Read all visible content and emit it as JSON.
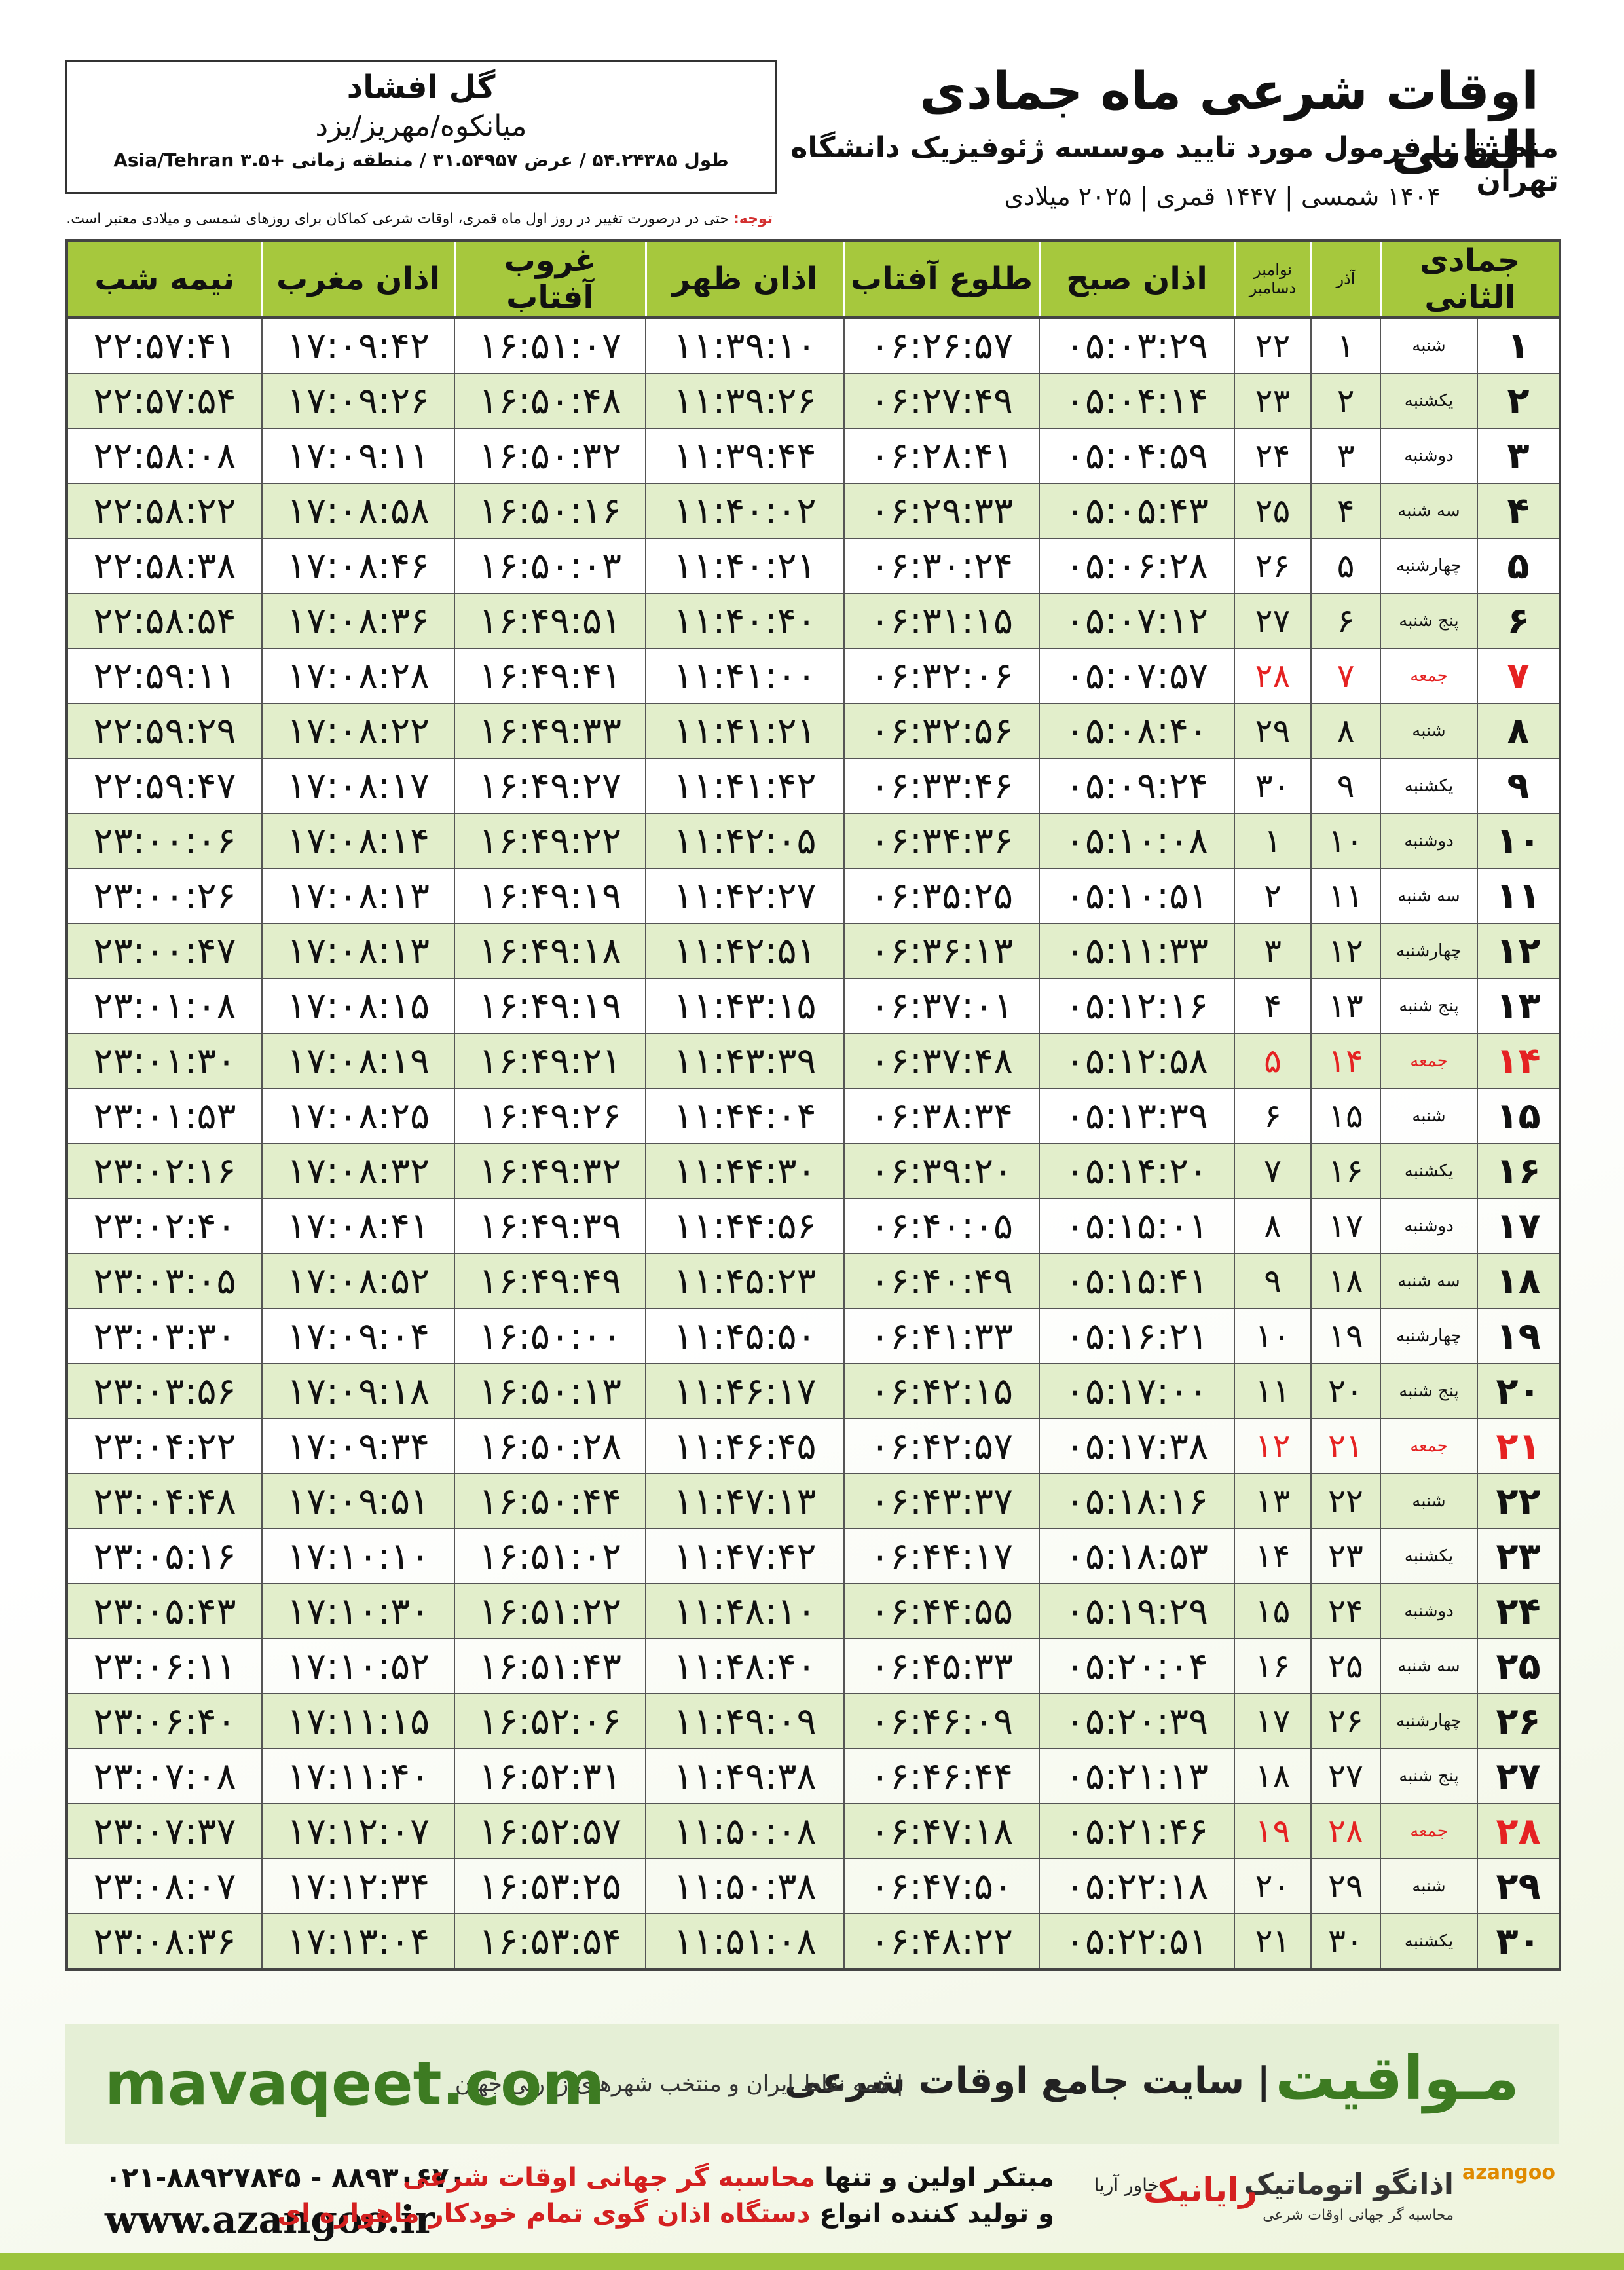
{
  "header": {
    "title": "اوقات شرعی ماه جمادی الثانی",
    "subtitle": "منطبق با فرمول مورد تایید موسسه ژئوفیزیک دانشگاه تهران",
    "dates": "۱۴۰۴ شمسی | ۱۴۴۷ قمری | ۲۰۲۵ میلادی"
  },
  "location": {
    "name": "گل افشاد",
    "region": "میانکوه/مهریز/یزد",
    "coords": "طول ۵۴.۲۴۳۸۵ / عرض ۳۱.۵۴۹۵۷ / منطقه زمانی +۳.۵ Asia/Tehran"
  },
  "note": {
    "label": "توجه:",
    "text": "حتی در درصورت تغییر در روز اول ماه قمری، اوقات شرعی کماکان برای روزهای شمسی و میلادی معتبر است."
  },
  "table": {
    "columns": [
      "جمادی الثانی",
      "آذر",
      [
        "نوامبر",
        "دسامبر"
      ],
      "اذان صبح",
      "طلوع آفتاب",
      "اذان ظهر",
      "غروب آفتاب",
      "اذان مغرب",
      "نیمه شب"
    ],
    "friday_color": "#e52222",
    "stripe_color": "#e2eecb",
    "rows": [
      {
        "cells": [
          "۱",
          "شنبه",
          "۱",
          "۲۲",
          "۰۵:۰۳:۲۹",
          "۰۶:۲۶:۵۷",
          "۱۱:۳۹:۱۰",
          "۱۶:۵۱:۰۷",
          "۱۷:۰۹:۴۲",
          "۲۲:۵۷:۴۱"
        ]
      },
      {
        "cells": [
          "۲",
          "یکشنبه",
          "۲",
          "۲۳",
          "۰۵:۰۴:۱۴",
          "۰۶:۲۷:۴۹",
          "۱۱:۳۹:۲۶",
          "۱۶:۵۰:۴۸",
          "۱۷:۰۹:۲۶",
          "۲۲:۵۷:۵۴"
        ]
      },
      {
        "cells": [
          "۳",
          "دوشنبه",
          "۳",
          "۲۴",
          "۰۵:۰۴:۵۹",
          "۰۶:۲۸:۴۱",
          "۱۱:۳۹:۴۴",
          "۱۶:۵۰:۳۲",
          "۱۷:۰۹:۱۱",
          "۲۲:۵۸:۰۸"
        ]
      },
      {
        "cells": [
          "۴",
          "سه شنبه",
          "۴",
          "۲۵",
          "۰۵:۰۵:۴۳",
          "۰۶:۲۹:۳۳",
          "۱۱:۴۰:۰۲",
          "۱۶:۵۰:۱۶",
          "۱۷:۰۸:۵۸",
          "۲۲:۵۸:۲۲"
        ]
      },
      {
        "cells": [
          "۵",
          "چهارشنبه",
          "۵",
          "۲۶",
          "۰۵:۰۶:۲۸",
          "۰۶:۳۰:۲۴",
          "۱۱:۴۰:۲۱",
          "۱۶:۵۰:۰۳",
          "۱۷:۰۸:۴۶",
          "۲۲:۵۸:۳۸"
        ]
      },
      {
        "cells": [
          "۶",
          "پنج شنبه",
          "۶",
          "۲۷",
          "۰۵:۰۷:۱۲",
          "۰۶:۳۱:۱۵",
          "۱۱:۴۰:۴۰",
          "۱۶:۴۹:۵۱",
          "۱۷:۰۸:۳۶",
          "۲۲:۵۸:۵۴"
        ]
      },
      {
        "cells": [
          "۷",
          "جمعه",
          "۷",
          "۲۸",
          "۰۵:۰۷:۵۷",
          "۰۶:۳۲:۰۶",
          "۱۱:۴۱:۰۰",
          "۱۶:۴۹:۴۱",
          "۱۷:۰۸:۲۸",
          "۲۲:۵۹:۱۱"
        ],
        "friday": true
      },
      {
        "cells": [
          "۸",
          "شنبه",
          "۸",
          "۲۹",
          "۰۵:۰۸:۴۰",
          "۰۶:۳۲:۵۶",
          "۱۱:۴۱:۲۱",
          "۱۶:۴۹:۳۳",
          "۱۷:۰۸:۲۲",
          "۲۲:۵۹:۲۹"
        ]
      },
      {
        "cells": [
          "۹",
          "یکشنبه",
          "۹",
          "۳۰",
          "۰۵:۰۹:۲۴",
          "۰۶:۳۳:۴۶",
          "۱۱:۴۱:۴۲",
          "۱۶:۴۹:۲۷",
          "۱۷:۰۸:۱۷",
          "۲۲:۵۹:۴۷"
        ]
      },
      {
        "cells": [
          "۱۰",
          "دوشنبه",
          "۱۰",
          "۱",
          "۰۵:۱۰:۰۸",
          "۰۶:۳۴:۳۶",
          "۱۱:۴۲:۰۵",
          "۱۶:۴۹:۲۲",
          "۱۷:۰۸:۱۴",
          "۲۳:۰۰:۰۶"
        ]
      },
      {
        "cells": [
          "۱۱",
          "سه شنبه",
          "۱۱",
          "۲",
          "۰۵:۱۰:۵۱",
          "۰۶:۳۵:۲۵",
          "۱۱:۴۲:۲۷",
          "۱۶:۴۹:۱۹",
          "۱۷:۰۸:۱۳",
          "۲۳:۰۰:۲۶"
        ]
      },
      {
        "cells": [
          "۱۲",
          "چهارشنبه",
          "۱۲",
          "۳",
          "۰۵:۱۱:۳۳",
          "۰۶:۳۶:۱۳",
          "۱۱:۴۲:۵۱",
          "۱۶:۴۹:۱۸",
          "۱۷:۰۸:۱۳",
          "۲۳:۰۰:۴۷"
        ]
      },
      {
        "cells": [
          "۱۳",
          "پنج شنبه",
          "۱۳",
          "۴",
          "۰۵:۱۲:۱۶",
          "۰۶:۳۷:۰۱",
          "۱۱:۴۳:۱۵",
          "۱۶:۴۹:۱۹",
          "۱۷:۰۸:۱۵",
          "۲۳:۰۱:۰۸"
        ]
      },
      {
        "cells": [
          "۱۴",
          "جمعه",
          "۱۴",
          "۵",
          "۰۵:۱۲:۵۸",
          "۰۶:۳۷:۴۸",
          "۱۱:۴۳:۳۹",
          "۱۶:۴۹:۲۱",
          "۱۷:۰۸:۱۹",
          "۲۳:۰۱:۳۰"
        ],
        "friday": true
      },
      {
        "cells": [
          "۱۵",
          "شنبه",
          "۱۵",
          "۶",
          "۰۵:۱۳:۳۹",
          "۰۶:۳۸:۳۴",
          "۱۱:۴۴:۰۴",
          "۱۶:۴۹:۲۶",
          "۱۷:۰۸:۲۵",
          "۲۳:۰۱:۵۳"
        ]
      },
      {
        "cells": [
          "۱۶",
          "یکشنبه",
          "۱۶",
          "۷",
          "۰۵:۱۴:۲۰",
          "۰۶:۳۹:۲۰",
          "۱۱:۴۴:۳۰",
          "۱۶:۴۹:۳۲",
          "۱۷:۰۸:۳۲",
          "۲۳:۰۲:۱۶"
        ]
      },
      {
        "cells": [
          "۱۷",
          "دوشنبه",
          "۱۷",
          "۸",
          "۰۵:۱۵:۰۱",
          "۰۶:۴۰:۰۵",
          "۱۱:۴۴:۵۶",
          "۱۶:۴۹:۳۹",
          "۱۷:۰۸:۴۱",
          "۲۳:۰۲:۴۰"
        ]
      },
      {
        "cells": [
          "۱۸",
          "سه شنبه",
          "۱۸",
          "۹",
          "۰۵:۱۵:۴۱",
          "۰۶:۴۰:۴۹",
          "۱۱:۴۵:۲۳",
          "۱۶:۴۹:۴۹",
          "۱۷:۰۸:۵۲",
          "۲۳:۰۳:۰۵"
        ]
      },
      {
        "cells": [
          "۱۹",
          "چهارشنبه",
          "۱۹",
          "۱۰",
          "۰۵:۱۶:۲۱",
          "۰۶:۴۱:۳۳",
          "۱۱:۴۵:۵۰",
          "۱۶:۵۰:۰۰",
          "۱۷:۰۹:۰۴",
          "۲۳:۰۳:۳۰"
        ]
      },
      {
        "cells": [
          "۲۰",
          "پنج شنبه",
          "۲۰",
          "۱۱",
          "۰۵:۱۷:۰۰",
          "۰۶:۴۲:۱۵",
          "۱۱:۴۶:۱۷",
          "۱۶:۵۰:۱۳",
          "۱۷:۰۹:۱۸",
          "۲۳:۰۳:۵۶"
        ]
      },
      {
        "cells": [
          "۲۱",
          "جمعه",
          "۲۱",
          "۱۲",
          "۰۵:۱۷:۳۸",
          "۰۶:۴۲:۵۷",
          "۱۱:۴۶:۴۵",
          "۱۶:۵۰:۲۸",
          "۱۷:۰۹:۳۴",
          "۲۳:۰۴:۲۲"
        ],
        "friday": true
      },
      {
        "cells": [
          "۲۲",
          "شنبه",
          "۲۲",
          "۱۳",
          "۰۵:۱۸:۱۶",
          "۰۶:۴۳:۳۷",
          "۱۱:۴۷:۱۳",
          "۱۶:۵۰:۴۴",
          "۱۷:۰۹:۵۱",
          "۲۳:۰۴:۴۸"
        ]
      },
      {
        "cells": [
          "۲۳",
          "یکشنبه",
          "۲۳",
          "۱۴",
          "۰۵:۱۸:۵۳",
          "۰۶:۴۴:۱۷",
          "۱۱:۴۷:۴۲",
          "۱۶:۵۱:۰۲",
          "۱۷:۱۰:۱۰",
          "۲۳:۰۵:۱۶"
        ]
      },
      {
        "cells": [
          "۲۴",
          "دوشنبه",
          "۲۴",
          "۱۵",
          "۰۵:۱۹:۲۹",
          "۰۶:۴۴:۵۵",
          "۱۱:۴۸:۱۰",
          "۱۶:۵۱:۲۲",
          "۱۷:۱۰:۳۰",
          "۲۳:۰۵:۴۳"
        ]
      },
      {
        "cells": [
          "۲۵",
          "سه شنبه",
          "۲۵",
          "۱۶",
          "۰۵:۲۰:۰۴",
          "۰۶:۴۵:۳۳",
          "۱۱:۴۸:۴۰",
          "۱۶:۵۱:۴۳",
          "۱۷:۱۰:۵۲",
          "۲۳:۰۶:۱۱"
        ]
      },
      {
        "cells": [
          "۲۶",
          "چهارشنبه",
          "۲۶",
          "۱۷",
          "۰۵:۲۰:۳۹",
          "۰۶:۴۶:۰۹",
          "۱۱:۴۹:۰۹",
          "۱۶:۵۲:۰۶",
          "۱۷:۱۱:۱۵",
          "۲۳:۰۶:۴۰"
        ]
      },
      {
        "cells": [
          "۲۷",
          "پنج شنبه",
          "۲۷",
          "۱۸",
          "۰۵:۲۱:۱۳",
          "۰۶:۴۶:۴۴",
          "۱۱:۴۹:۳۸",
          "۱۶:۵۲:۳۱",
          "۱۷:۱۱:۴۰",
          "۲۳:۰۷:۰۸"
        ]
      },
      {
        "cells": [
          "۲۸",
          "جمعه",
          "۲۸",
          "۱۹",
          "۰۵:۲۱:۴۶",
          "۰۶:۴۷:۱۸",
          "۱۱:۵۰:۰۸",
          "۱۶:۵۲:۵۷",
          "۱۷:۱۲:۰۷",
          "۲۳:۰۷:۳۷"
        ],
        "friday": true
      },
      {
        "cells": [
          "۲۹",
          "شنبه",
          "۲۹",
          "۲۰",
          "۰۵:۲۲:۱۸",
          "۰۶:۴۷:۵۰",
          "۱۱:۵۰:۳۸",
          "۱۶:۵۳:۲۵",
          "۱۷:۱۲:۳۴",
          "۲۳:۰۸:۰۷"
        ]
      },
      {
        "cells": [
          "۳۰",
          "یکشنبه",
          "۳۰",
          "۲۱",
          "۰۵:۲۲:۵۱",
          "۰۶:۴۸:۲۲",
          "۱۱:۵۱:۰۸",
          "۱۶:۵۳:۵۴",
          "۱۷:۱۳:۰۴",
          "۲۳:۰۸:۳۶"
        ]
      }
    ]
  },
  "footer": {
    "brand": "مـواقیت",
    "slogan": "| سایت جامع اوقات شرعی",
    "slogan2": "| همه نقاط ایران و منتخب شهرهای زیارتی جهان",
    "site": "mavaqeet.com",
    "phone": "۰۲۱-۸۸۹۲۷۸۴۵ - ۸۸۹۳۰۶۷۰",
    "www": "www.azangoo.ir",
    "line1_a": "مبتکر اولین و تنها ",
    "line1_b": "محاسبه گر جهانی اوقات شرعی",
    "line2_a": "و تولید کننده انواع ",
    "line2_b": "دستگاه اذان گوی تمام خودکار ماهواره ای",
    "logo_azangoo": "اذانگو اتوماتیک",
    "logo_azangoo_sub": "محاسبه گر جهانی اوقات شرعی",
    "logo_azangoo_en": "azangoo",
    "logo_rayanik": "رایانیک",
    "logo_khavar": "خاور آریا"
  }
}
